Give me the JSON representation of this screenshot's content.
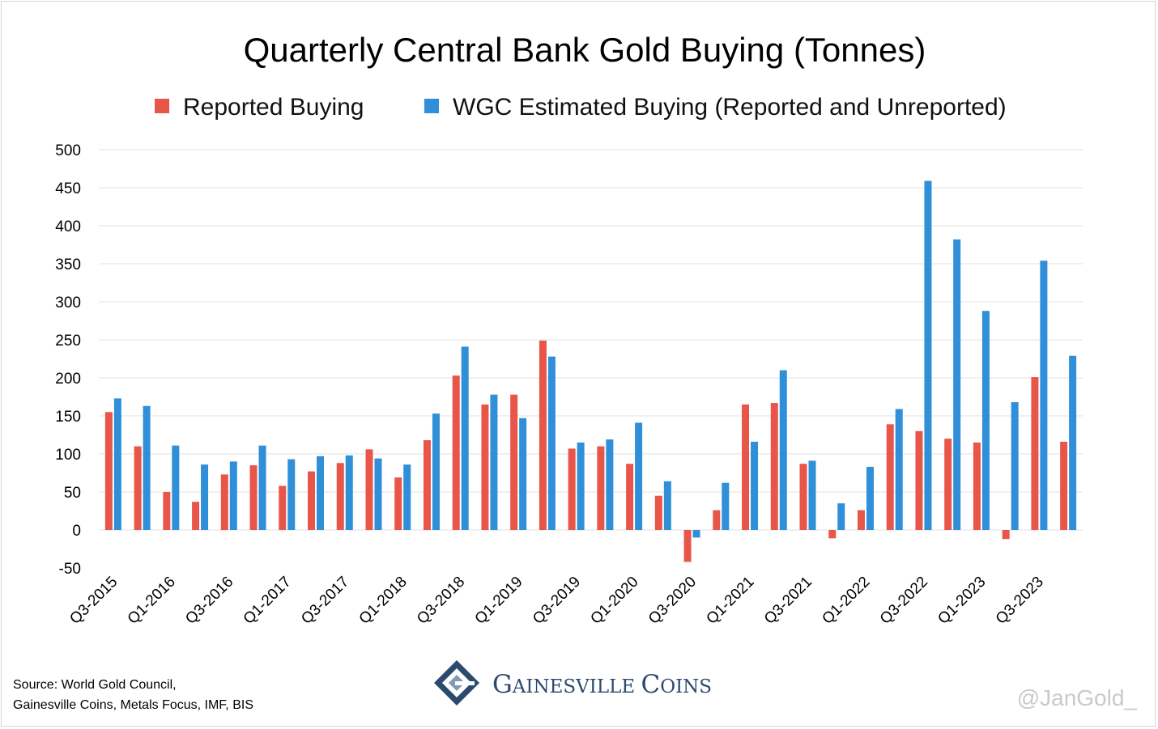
{
  "chart_data": {
    "type": "bar",
    "title": "Quarterly Central Bank Gold Buying (Tonnes)",
    "xlabel": "",
    "ylabel": "",
    "ylim": [
      -50,
      500
    ],
    "yticks": [
      500,
      450,
      400,
      350,
      300,
      250,
      200,
      150,
      100,
      50,
      0,
      -50
    ],
    "grid": true,
    "legend_position": "top",
    "categories": [
      "Q3-2015",
      "Q4-2015",
      "Q1-2016",
      "Q2-2016",
      "Q3-2016",
      "Q4-2016",
      "Q1-2017",
      "Q2-2017",
      "Q3-2017",
      "Q4-2017",
      "Q1-2018",
      "Q2-2018",
      "Q3-2018",
      "Q4-2018",
      "Q1-2019",
      "Q2-2019",
      "Q3-2019",
      "Q4-2019",
      "Q1-2020",
      "Q2-2020",
      "Q3-2020",
      "Q4-2020",
      "Q1-2021",
      "Q2-2021",
      "Q3-2021",
      "Q4-2021",
      "Q1-2022",
      "Q2-2022",
      "Q3-2022",
      "Q4-2022",
      "Q1-2023",
      "Q2-2023",
      "Q3-2023",
      "Q4-2023"
    ],
    "tick_labels": [
      "Q3-2015",
      "Q1-2016",
      "Q3-2016",
      "Q1-2017",
      "Q3-2017",
      "Q1-2018",
      "Q3-2018",
      "Q1-2019",
      "Q3-2019",
      "Q1-2020",
      "Q3-2020",
      "Q1-2021",
      "Q3-2021",
      "Q1-2022",
      "Q3-2022",
      "Q1-2023",
      "Q3-2023"
    ],
    "series": [
      {
        "name": "Reported Buying",
        "color": "#e8564a",
        "values": [
          155,
          110,
          50,
          37,
          73,
          85,
          58,
          77,
          88,
          106,
          69,
          118,
          203,
          165,
          178,
          249,
          107,
          110,
          87,
          45,
          -42,
          26,
          165,
          167,
          87,
          -11,
          26,
          139,
          130,
          120,
          115,
          -12,
          201,
          116
        ]
      },
      {
        "name": "WGC Estimated Buying (Reported and Unreported)",
        "color": "#2f8fd8",
        "values": [
          173,
          163,
          111,
          86,
          90,
          111,
          93,
          97,
          98,
          94,
          86,
          153,
          241,
          178,
          147,
          228,
          115,
          119,
          141,
          64,
          -10,
          62,
          116,
          210,
          91,
          35,
          83,
          159,
          459,
          382,
          288,
          168,
          354,
          229
        ]
      }
    ]
  },
  "source": {
    "line1": "Source: World Gold Council,",
    "line2": "Gainesville Coins, Metals Focus, IMF, BIS"
  },
  "brand": {
    "name_first_cap": "G",
    "name_first_rest": "AINESVILLE",
    "name_second_cap": "C",
    "name_second_rest": "OINS"
  },
  "watermark": "@JanGold_"
}
